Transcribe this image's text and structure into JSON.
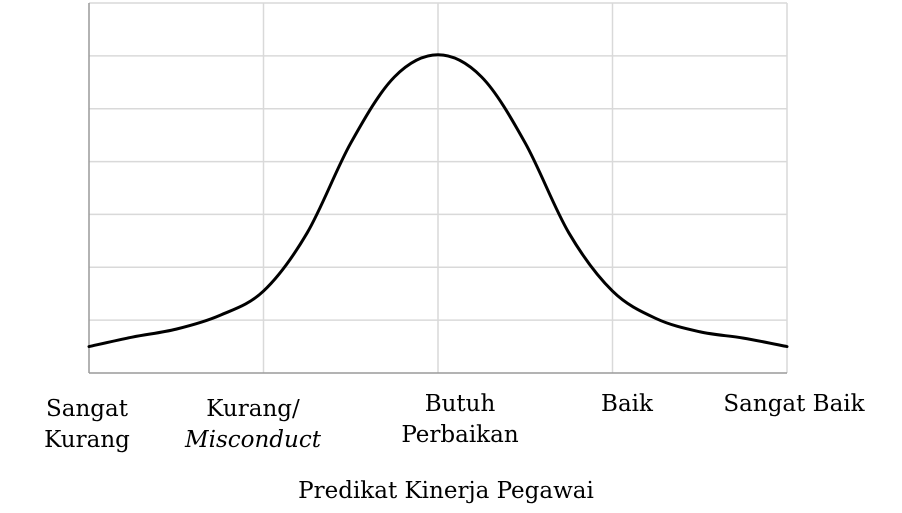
{
  "chart_data": {
    "type": "line",
    "title": "",
    "xlabel": "Predikat Kinerja Pegawai",
    "ylabel": "",
    "categories": [
      {
        "line1": "Sangat",
        "line2": "Kurang",
        "italic2": false
      },
      {
        "line1": "Kurang/",
        "line2": "Misconduct",
        "italic2": true
      },
      {
        "line1": "Butuh",
        "line2": "Perbaikan",
        "italic2": false
      },
      {
        "line1": "Baik",
        "line2": "",
        "italic2": false
      },
      {
        "line1": "Sangat Baik",
        "line2": "",
        "italic2": false
      }
    ],
    "xlim": [
      0,
      4
    ],
    "ylim": [
      0,
      7
    ],
    "grid": true,
    "series": [
      {
        "x": [
          0,
          0.25,
          0.5,
          0.75,
          1.0,
          1.25,
          1.5,
          1.75,
          2.0,
          2.25,
          2.5,
          2.75,
          3.0,
          3.25,
          3.5,
          3.75,
          4.0
        ],
        "values": [
          0.5,
          0.68,
          0.83,
          1.09,
          1.55,
          2.65,
          4.35,
          5.6,
          6.02,
          5.6,
          4.35,
          2.65,
          1.55,
          1.03,
          0.78,
          0.66,
          0.5
        ]
      }
    ]
  }
}
